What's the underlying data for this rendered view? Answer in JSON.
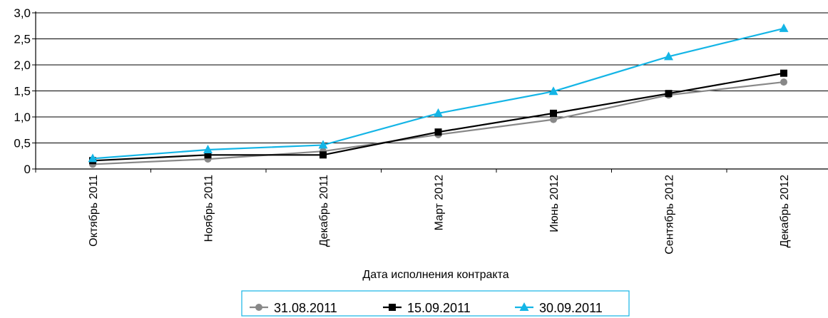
{
  "chart_data": {
    "type": "line",
    "title": "",
    "xlabel": "Дата исполнения контракта",
    "ylabel": "",
    "categories": [
      "Октябрь 2011",
      "Ноябрь 2011",
      "Декабрь 2011",
      "Март 2012",
      "Июнь 2012",
      "Сентябрь 2012",
      "Декабрь 2012"
    ],
    "y_ticks": [
      "0",
      "0,5",
      "1,0",
      "1,5",
      "2,0",
      "2,5",
      "3,0"
    ],
    "ylim": [
      0,
      3.0
    ],
    "grid": true,
    "legend_position": "bottom",
    "series": [
      {
        "name": "31.08.2011",
        "color": "#888888",
        "marker": "circle",
        "values": [
          0.09,
          0.19,
          0.34,
          0.66,
          0.95,
          1.42,
          1.67
        ]
      },
      {
        "name": "15.09.2011",
        "color": "#000000",
        "marker": "square",
        "values": [
          0.16,
          0.27,
          0.27,
          0.71,
          1.07,
          1.45,
          1.84
        ]
      },
      {
        "name": "30.09.2011",
        "color": "#14b5e6",
        "marker": "triangle",
        "values": [
          0.2,
          0.37,
          0.46,
          1.07,
          1.49,
          2.16,
          2.7
        ]
      }
    ]
  }
}
